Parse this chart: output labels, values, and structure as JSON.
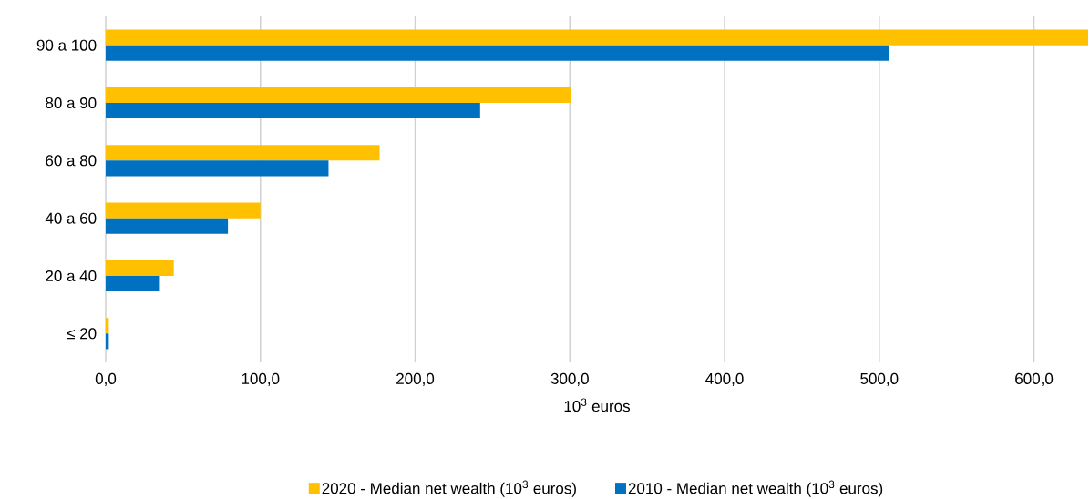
{
  "chart_data": {
    "type": "bar",
    "orientation": "horizontal",
    "xlabel": "10$^{3}$ euros",
    "categories": [
      "90 a 100",
      "80 a 90",
      "60 a 80",
      "40 a 60",
      "20 a 40",
      "≤ 20"
    ],
    "series": [
      {
        "name": "2020 - Median net wealth (10$^{3}$ euros)",
        "color": "#ffc000",
        "values": [
          635,
          301,
          177,
          100,
          44,
          2
        ]
      },
      {
        "name": "2010 - Median net wealth (10$^{3}$ euros)",
        "color": "#0070c0",
        "values": [
          506,
          242,
          144,
          79,
          35,
          2
        ]
      }
    ],
    "xlim": [
      0,
      635
    ],
    "xticks": [
      {
        "value": 0,
        "label": "0,0"
      },
      {
        "value": 100,
        "label": "100,0"
      },
      {
        "value": 200,
        "label": "200,0"
      },
      {
        "value": 300,
        "label": "300,0"
      },
      {
        "value": 400,
        "label": "400,0"
      },
      {
        "value": 500,
        "label": "500,0"
      },
      {
        "value": 600,
        "label": "600,0"
      }
    ],
    "grid": "x",
    "legend": "bottom"
  }
}
